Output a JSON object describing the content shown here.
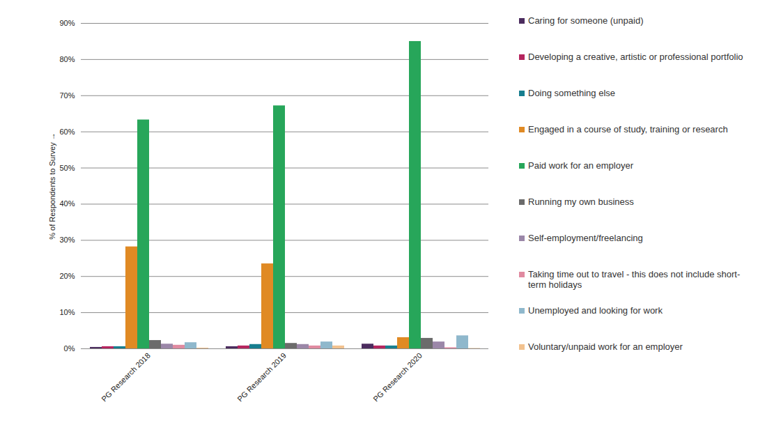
{
  "chart_data": {
    "type": "bar",
    "y_label": "% of Respondents to Survey",
    "categories": [
      "PG Research 2018",
      "PG Research 2019",
      "PG Research 2020"
    ],
    "series": [
      {
        "name": "Caring for someone (unpaid)",
        "color": "#4b2c5e",
        "values": [
          0.4,
          0.6,
          1.3
        ]
      },
      {
        "name": "Developing a creative, artistic or professional portfolio",
        "color": "#b5255e",
        "values": [
          0.6,
          0.8,
          0.8
        ]
      },
      {
        "name": "Doing something else",
        "color": "#177e8f",
        "values": [
          0.6,
          1.2,
          0.8
        ]
      },
      {
        "name": "Engaged in a course of study, training or research",
        "color": "#e08a24",
        "values": [
          28.2,
          23.5,
          3.1
        ]
      },
      {
        "name": "Paid work for an employer",
        "color": "#27a65a",
        "values": [
          63.3,
          67.2,
          85.0
        ]
      },
      {
        "name": "Running my own business",
        "color": "#6b6b6b",
        "values": [
          2.3,
          1.5,
          2.9
        ]
      },
      {
        "name": "Self-employment/freelancing",
        "color": "#9b87a8",
        "values": [
          1.3,
          1.2,
          1.9
        ]
      },
      {
        "name": "Taking time out to travel - this does not include short-term holidays",
        "color": "#e08aa0",
        "values": [
          1.0,
          0.8,
          0.3
        ]
      },
      {
        "name": "Unemployed and looking for work",
        "color": "#8fb8cc",
        "values": [
          1.7,
          1.9,
          3.6
        ]
      },
      {
        "name": "Voluntary/unpaid work for an employer",
        "color": "#f2c28f",
        "values": [
          0.2,
          0.8,
          0.1
        ]
      }
    ],
    "ylim": [
      0,
      90
    ],
    "yticks": [
      {
        "value": 0,
        "label": "0%"
      },
      {
        "value": 10,
        "label": "10%"
      },
      {
        "value": 20,
        "label": "20%"
      },
      {
        "value": 30,
        "label": "30%"
      },
      {
        "value": 40,
        "label": "40%"
      },
      {
        "value": 50,
        "label": "50%"
      },
      {
        "value": 60,
        "label": "60%"
      },
      {
        "value": 70,
        "label": "70%"
      },
      {
        "value": 80,
        "label": "80%"
      },
      {
        "value": 90,
        "label": "90%"
      }
    ],
    "grid": true,
    "legend": "right"
  }
}
